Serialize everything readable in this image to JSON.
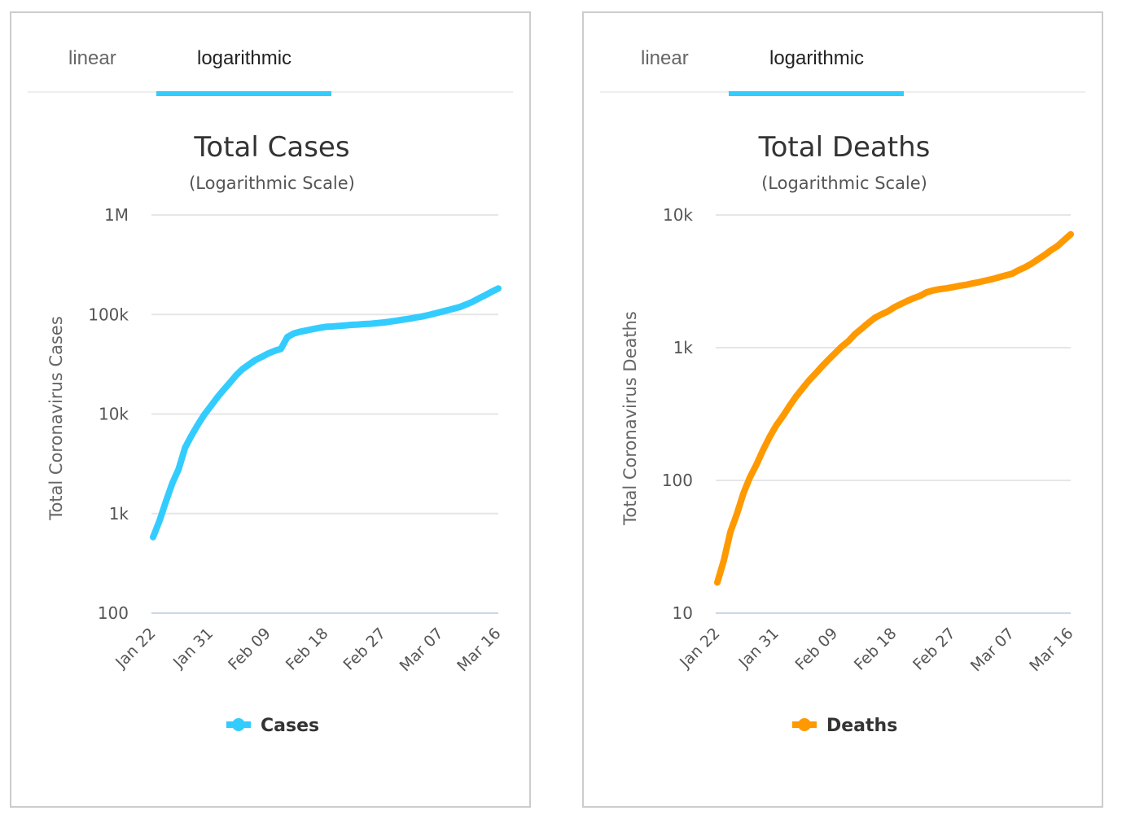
{
  "panels": [
    {
      "tabs": [
        {
          "label": "linear",
          "active": false
        },
        {
          "label": "logarithmic",
          "active": true
        }
      ],
      "accent_color": "#33ccff"
    },
    {
      "tabs": [
        {
          "label": "linear",
          "active": false
        },
        {
          "label": "logarithmic",
          "active": true
        }
      ],
      "accent_color": "#33ccff"
    }
  ],
  "chart_data": [
    {
      "type": "line",
      "title": "Total Cases",
      "subtitle": "(Logarithmic Scale)",
      "xlabel": "",
      "ylabel": "Total Coronavirus Cases",
      "yscale": "log",
      "ylim": [
        100,
        1000000
      ],
      "yticks": [
        100,
        1000,
        10000,
        100000,
        1000000
      ],
      "ytick_labels": [
        "100",
        "1k",
        "10k",
        "100k",
        "1M"
      ],
      "xtick_labels": [
        "Jan 22",
        "Jan 31",
        "Feb 09",
        "Feb 18",
        "Feb 27",
        "Mar 07",
        "Mar 16"
      ],
      "xtick_indices": [
        0,
        9,
        18,
        27,
        36,
        45,
        54
      ],
      "grid": true,
      "legend": "bottom-center",
      "series": [
        {
          "name": "Cases",
          "color": "#33ccff",
          "values": [
            580,
            845,
            1317,
            2015,
            2800,
            4581,
            6058,
            7813,
            9823,
            11950,
            14553,
            17391,
            20630,
            24545,
            28266,
            31439,
            34876,
            37552,
            40553,
            43099,
            45134,
            59287,
            64438,
            67100,
            69197,
            71329,
            73332,
            75184,
            75700,
            76677,
            77673,
            78651,
            79205,
            80087,
            80828,
            81820,
            83112,
            84615,
            86604,
            88585,
            90443,
            93016,
            95314,
            98425,
            102050,
            106099,
            109991,
            114381,
            118948,
            126214,
            134576,
            145483,
            156653,
            169593,
            182490
          ]
        }
      ]
    },
    {
      "type": "line",
      "title": "Total Deaths",
      "subtitle": "(Logarithmic Scale)",
      "xlabel": "",
      "ylabel": "Total Coronavirus Deaths",
      "yscale": "log",
      "ylim": [
        10,
        10000
      ],
      "yticks": [
        10,
        100,
        1000,
        10000
      ],
      "ytick_labels": [
        "10",
        "100",
        "1k",
        "10k"
      ],
      "xtick_labels": [
        "Jan 22",
        "Jan 31",
        "Feb 09",
        "Feb 18",
        "Feb 27",
        "Mar 07",
        "Mar 16"
      ],
      "xtick_indices": [
        0,
        9,
        18,
        27,
        36,
        45,
        54
      ],
      "grid": true,
      "legend": "bottom-center",
      "series": [
        {
          "name": "Deaths",
          "color": "#ff9900",
          "values": [
            17,
            25,
            41,
            56,
            80,
            106,
            132,
            170,
            213,
            259,
            304,
            362,
            426,
            492,
            565,
            638,
            724,
            813,
            910,
            1018,
            1115,
            1261,
            1383,
            1526,
            1669,
            1775,
            1873,
            2009,
            2126,
            2247,
            2360,
            2460,
            2618,
            2699,
            2763,
            2800,
            2858,
            2923,
            2977,
            3050,
            3117,
            3202,
            3285,
            3387,
            3494,
            3599,
            3827,
            4025,
            4296,
            4628,
            4981,
            5429,
            5835,
            6470,
            7153
          ]
        }
      ]
    }
  ]
}
